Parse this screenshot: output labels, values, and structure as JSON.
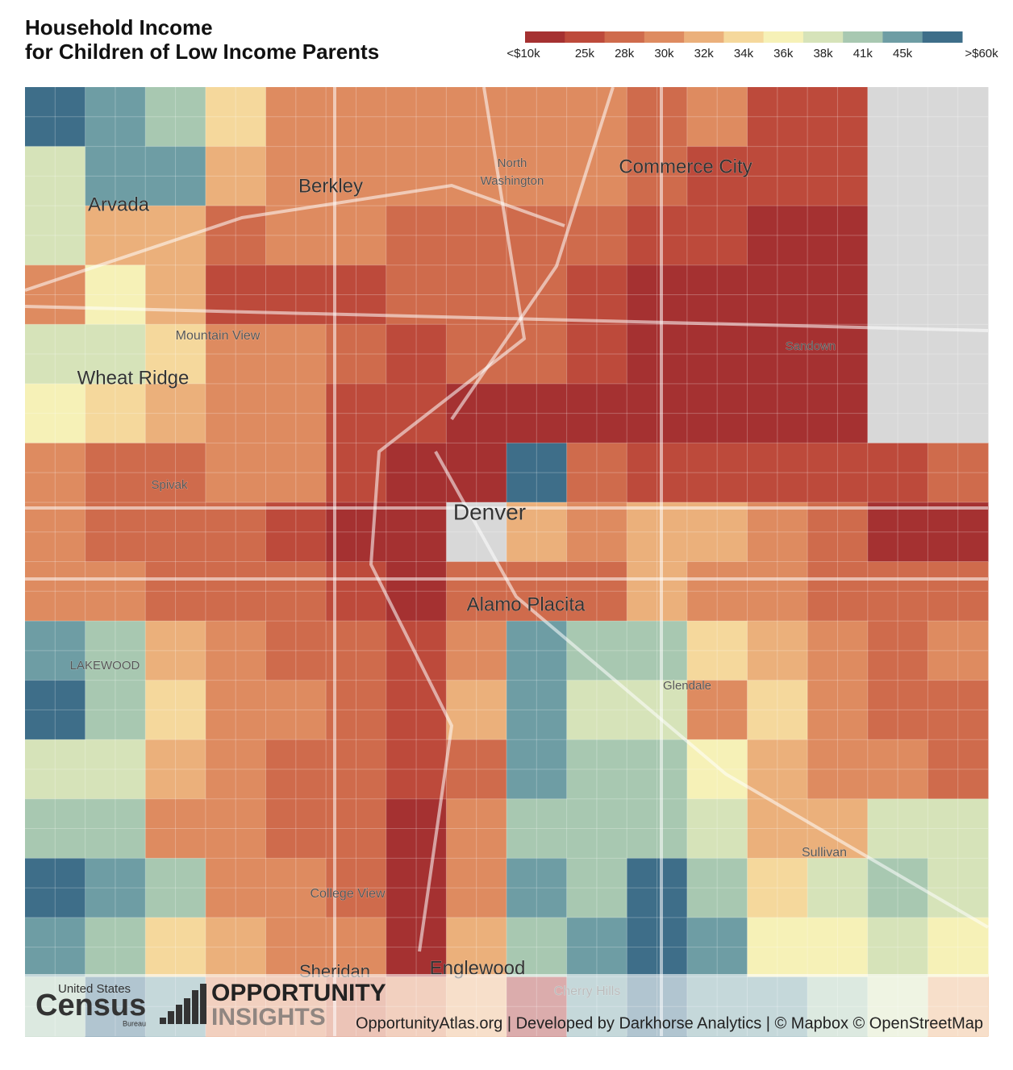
{
  "header": {
    "title_lines": [
      "Household Income",
      "for Children of Low Income Parents"
    ]
  },
  "legend": {
    "labels": [
      "<$10k",
      "25k",
      "28k",
      "30k",
      "32k",
      "34k",
      "36k",
      "38k",
      "41k",
      "45k",
      ">$60k"
    ],
    "colors": [
      "#a53131",
      "#bd4a3b",
      "#cf6b4c",
      "#de8b60",
      "#ebb07b",
      "#f5d89c",
      "#f6f1b7",
      "#d6e3b9",
      "#a8c8b1",
      "#6e9da4",
      "#3e6e89"
    ],
    "no_data_color": "#d8d8d8"
  },
  "places": [
    "Arvada",
    "Berkley",
    "North",
    "Washington",
    "Commerce City",
    "Mountain View",
    "Sandown",
    "Wheat Ridge",
    "Spivak",
    "Denver",
    "Alamo Placita",
    "LAKEWOOD",
    "Glendale",
    "Sullivan",
    "College View",
    "Sheridan",
    "Englewood",
    "Cherry Hills"
  ],
  "footer": {
    "census_top": "United States",
    "census_main": "Census",
    "census_bureau": "Bureau",
    "oi_line1": "OPPORTUNITY",
    "oi_line2": "INSIGHTS",
    "attribution": "OpportunityAtlas.org | Developed by Darkhorse Analytics | © Mapbox © OpenStreetMap"
  }
}
